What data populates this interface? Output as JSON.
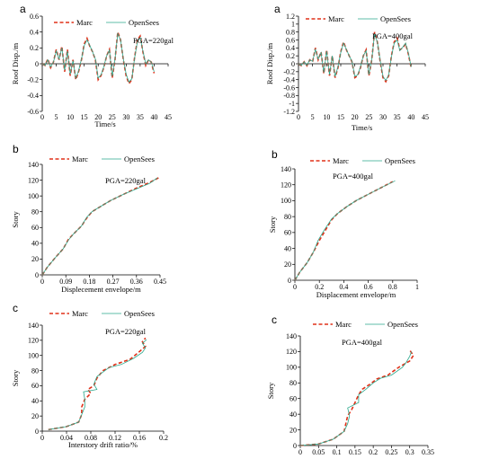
{
  "colors": {
    "marc": "#e03018",
    "opensees": "#2aa88c",
    "axis": "#000000"
  },
  "chart_data": [
    {
      "type": "line",
      "panel": "a",
      "annotation": "PGA=220gal",
      "xlabel": "Time/s",
      "ylabel": "Roof Disp./m",
      "xlim": [
        0,
        45
      ],
      "ylim": [
        -0.6,
        0.6
      ],
      "xticks": [
        0,
        5,
        10,
        15,
        20,
        25,
        30,
        35,
        40,
        45
      ],
      "yticks": [
        -0.6,
        -0.4,
        -0.2,
        0,
        0.2,
        0.4,
        0.6
      ],
      "ytick_labels": [
        "-0.6",
        "-0.4",
        "-0.2",
        "0",
        "0.2",
        "0.4",
        "0.6"
      ],
      "series": [
        {
          "name": "Marc",
          "x": [
            0,
            1,
            2,
            3,
            4,
            5,
            6,
            7,
            8,
            9,
            10,
            11,
            12,
            13,
            14,
            15,
            16,
            17,
            18,
            19,
            20,
            21,
            22,
            23,
            24,
            25,
            26,
            27,
            28,
            29,
            30,
            31,
            32,
            33,
            34,
            35,
            36,
            37,
            38,
            39,
            40
          ],
          "values": [
            0,
            -0.02,
            0.06,
            -0.05,
            0.02,
            0.18,
            0.05,
            0.22,
            -0.1,
            0.18,
            -0.15,
            0.05,
            -0.2,
            -0.1,
            0.05,
            0.25,
            0.32,
            0.22,
            0.15,
            0.05,
            -0.2,
            -0.15,
            -0.05,
            0.1,
            0.18,
            -0.18,
            0.05,
            0.4,
            0.3,
            0.05,
            -0.15,
            -0.25,
            -0.2,
            0.08,
            0.3,
            0.35,
            0.15,
            -0.02,
            0.05,
            0.02,
            -0.12
          ]
        },
        {
          "name": "OpenSees",
          "x": [
            0,
            1,
            2,
            3,
            4,
            5,
            6,
            7,
            8,
            9,
            10,
            11,
            12,
            13,
            14,
            15,
            16,
            17,
            18,
            19,
            20,
            21,
            22,
            23,
            24,
            25,
            26,
            27,
            28,
            29,
            30,
            31,
            32,
            33,
            34,
            35,
            36,
            37,
            38,
            39,
            40
          ],
          "values": [
            0,
            -0.02,
            0.05,
            -0.04,
            0.02,
            0.16,
            0.06,
            0.2,
            -0.08,
            0.16,
            -0.13,
            0.04,
            -0.18,
            -0.09,
            0.06,
            0.23,
            0.3,
            0.23,
            0.15,
            0.06,
            -0.18,
            -0.14,
            -0.04,
            0.1,
            0.17,
            -0.16,
            0.06,
            0.38,
            0.3,
            0.06,
            -0.13,
            -0.23,
            -0.19,
            0.07,
            0.28,
            0.33,
            0.16,
            0,
            0.05,
            0.02,
            -0.1
          ]
        }
      ]
    },
    {
      "type": "line",
      "panel": "a",
      "annotation": "PGA=400gal",
      "xlabel": "Time/s",
      "ylabel": "Roof Disp./m",
      "xlim": [
        0,
        45
      ],
      "ylim": [
        -1.2,
        1.2
      ],
      "xticks": [
        0,
        5,
        10,
        15,
        20,
        25,
        30,
        35,
        40,
        45
      ],
      "yticks": [
        -1.2,
        -1,
        -0.8,
        -0.6,
        -0.4,
        -0.2,
        0,
        0.2,
        0.4,
        0.6,
        0.8,
        1,
        1.2
      ],
      "ytick_labels": [
        "-1.2",
        "-1",
        "-0.8",
        "-0.6",
        "-0.4",
        "-0.2",
        "0",
        "0.2",
        "0.4",
        "0.6",
        "0.8",
        "1",
        "1.2"
      ],
      "series": [
        {
          "name": "Marc",
          "x": [
            0,
            1,
            2,
            3,
            4,
            5,
            6,
            7,
            8,
            9,
            10,
            11,
            12,
            13,
            14,
            15,
            16,
            17,
            18,
            19,
            20,
            21,
            22,
            23,
            24,
            25,
            26,
            27,
            28,
            29,
            30,
            31,
            32,
            33,
            34,
            35,
            36,
            37,
            38,
            39,
            40
          ],
          "values": [
            0,
            -0.05,
            0.05,
            -0.05,
            0.1,
            0.05,
            0.4,
            0.1,
            0.3,
            -0.25,
            0.35,
            -0.3,
            0.2,
            -0.35,
            -0.1,
            0.3,
            0.55,
            0.35,
            0.2,
            0.05,
            -0.35,
            -0.3,
            -0.1,
            0.2,
            0.35,
            -0.3,
            0.1,
            0.8,
            0.55,
            0.05,
            -0.35,
            -0.45,
            -0.3,
            0.2,
            0.55,
            0.65,
            0.35,
            0.4,
            0.5,
            0.25,
            -0.1
          ]
        },
        {
          "name": "OpenSees",
          "x": [
            0,
            1,
            2,
            3,
            4,
            5,
            6,
            7,
            8,
            9,
            10,
            11,
            12,
            13,
            14,
            15,
            16,
            17,
            18,
            19,
            20,
            21,
            22,
            23,
            24,
            25,
            26,
            27,
            28,
            29,
            30,
            31,
            32,
            33,
            34,
            35,
            36,
            37,
            38,
            39,
            40
          ],
          "values": [
            0,
            -0.04,
            0.05,
            -0.04,
            0.1,
            0.06,
            0.36,
            0.12,
            0.28,
            -0.22,
            0.32,
            -0.27,
            0.2,
            -0.32,
            -0.08,
            0.28,
            0.52,
            0.36,
            0.2,
            0.06,
            -0.32,
            -0.28,
            -0.08,
            0.2,
            0.33,
            -0.27,
            0.1,
            0.75,
            0.55,
            0.08,
            -0.32,
            -0.42,
            -0.28,
            0.18,
            0.52,
            0.6,
            0.33,
            0.42,
            0.52,
            0.27,
            -0.08
          ]
        }
      ]
    },
    {
      "type": "line",
      "panel": "b",
      "annotation": "PGA=220gal",
      "xlabel": "Displecement envelope/m",
      "ylabel": "Story",
      "xlim": [
        0,
        0.45
      ],
      "ylim": [
        0,
        140
      ],
      "xticks": [
        0,
        0.09,
        0.18,
        0.27,
        0.36,
        0.45
      ],
      "xtick_labels": [
        "0",
        "0.09",
        "0.18",
        "0.27",
        "0.36",
        "0.45"
      ],
      "yticks": [
        0,
        20,
        40,
        60,
        80,
        100,
        120,
        140
      ],
      "series": [
        {
          "name": "Marc",
          "x": [
            0,
            0.02,
            0.05,
            0.08,
            0.1,
            0.12,
            0.15,
            0.17,
            0.19,
            0.22,
            0.26,
            0.31,
            0.36,
            0.41,
            0.45
          ],
          "values": [
            0,
            10,
            22,
            33,
            45,
            52,
            62,
            72,
            80,
            86,
            94,
            102,
            110,
            117,
            124
          ]
        },
        {
          "name": "OpenSees",
          "x": [
            0,
            0.02,
            0.05,
            0.08,
            0.1,
            0.12,
            0.15,
            0.17,
            0.19,
            0.22,
            0.26,
            0.31,
            0.36,
            0.41,
            0.44
          ],
          "values": [
            0,
            10,
            22,
            33,
            44,
            52,
            62,
            73,
            80,
            86,
            94,
            102,
            109,
            116,
            123
          ]
        }
      ]
    },
    {
      "type": "line",
      "panel": "b",
      "annotation": "PGA=400gal",
      "xlabel": "Displacement envelope/m",
      "ylabel": "Story",
      "xlim": [
        0,
        1
      ],
      "ylim": [
        0,
        140
      ],
      "xticks": [
        0,
        0.2,
        0.4,
        0.6,
        0.8,
        1
      ],
      "xtick_labels": [
        "0",
        "0.2",
        "0.4",
        "0.6",
        "0.8",
        "1"
      ],
      "yticks": [
        0,
        20,
        40,
        60,
        80,
        100,
        120,
        140
      ],
      "series": [
        {
          "name": "Marc",
          "x": [
            0,
            0.04,
            0.1,
            0.15,
            0.2,
            0.25,
            0.3,
            0.35,
            0.42,
            0.5,
            0.6,
            0.7,
            0.8
          ],
          "values": [
            0,
            10,
            22,
            35,
            50,
            63,
            76,
            84,
            92,
            100,
            108,
            116,
            124
          ]
        },
        {
          "name": "OpenSees",
          "x": [
            0,
            0.04,
            0.1,
            0.15,
            0.19,
            0.24,
            0.3,
            0.35,
            0.42,
            0.5,
            0.6,
            0.7,
            0.82
          ],
          "values": [
            0,
            10,
            22,
            35,
            50,
            63,
            77,
            84,
            92,
            100,
            108,
            116,
            125
          ]
        }
      ]
    },
    {
      "type": "line",
      "panel": "c",
      "annotation": "PGA=220gal",
      "xlabel": "Interstory drift ratio/%",
      "ylabel": "Story",
      "xlim": [
        0,
        0.2
      ],
      "ylim": [
        0,
        140
      ],
      "xticks": [
        0,
        0.04,
        0.08,
        0.12,
        0.16,
        0.2
      ],
      "xtick_labels": [
        "0",
        "0.04",
        "0.08",
        "0.12",
        "0.16",
        "0.2"
      ],
      "yticks": [
        0,
        20,
        40,
        60,
        80,
        100,
        120,
        140
      ],
      "series": [
        {
          "name": "Marc",
          "x": [
            0.01,
            0.04,
            0.06,
            0.065,
            0.065,
            0.07,
            0.08,
            0.075,
            0.085,
            0.09,
            0.1,
            0.12,
            0.145,
            0.16,
            0.17,
            0.165,
            0.17
          ],
          "values": [
            2,
            6,
            12,
            22,
            32,
            42,
            50,
            55,
            60,
            70,
            80,
            88,
            95,
            105,
            112,
            118,
            123
          ]
        },
        {
          "name": "OpenSees",
          "x": [
            0.01,
            0.04,
            0.06,
            0.065,
            0.07,
            0.07,
            0.068,
            0.09,
            0.085,
            0.09,
            0.11,
            0.13,
            0.15,
            0.165,
            0.17,
            0.165,
            0.172
          ],
          "values": [
            2,
            6,
            12,
            22,
            32,
            42,
            52,
            55,
            62,
            72,
            84,
            88,
            96,
            104,
            110,
            116,
            121
          ]
        }
      ]
    },
    {
      "type": "line",
      "panel": "c",
      "annotation": "PGA=400gal",
      "xlabel": "",
      "ylabel": "Story",
      "xlim": [
        0,
        0.35
      ],
      "ylim": [
        0,
        140
      ],
      "xticks": [
        0,
        0.05,
        0.1,
        0.15,
        0.2,
        0.25,
        0.3,
        0.35
      ],
      "xtick_labels": [
        "0",
        "0.05",
        "0.1",
        "0.15",
        "0.2",
        "0.25",
        "0.3",
        "0.35"
      ],
      "yticks": [
        0,
        20,
        40,
        60,
        80,
        100,
        120,
        140
      ],
      "series": [
        {
          "name": "Marc",
          "x": [
            0,
            0.05,
            0.09,
            0.12,
            0.125,
            0.13,
            0.14,
            0.15,
            0.16,
            0.17,
            0.19,
            0.21,
            0.24,
            0.27,
            0.3,
            0.31,
            0.3
          ],
          "values": [
            0,
            2,
            8,
            18,
            28,
            38,
            45,
            55,
            65,
            72,
            78,
            85,
            90,
            100,
            108,
            115,
            122
          ]
        },
        {
          "name": "OpenSees",
          "x": [
            0,
            0.05,
            0.09,
            0.12,
            0.13,
            0.135,
            0.13,
            0.16,
            0.16,
            0.18,
            0.2,
            0.22,
            0.25,
            0.28,
            0.29,
            0.3,
            0.305
          ],
          "values": [
            0,
            2,
            8,
            18,
            28,
            38,
            48,
            55,
            65,
            72,
            80,
            86,
            90,
            100,
            106,
            114,
            120
          ]
        }
      ]
    }
  ]
}
